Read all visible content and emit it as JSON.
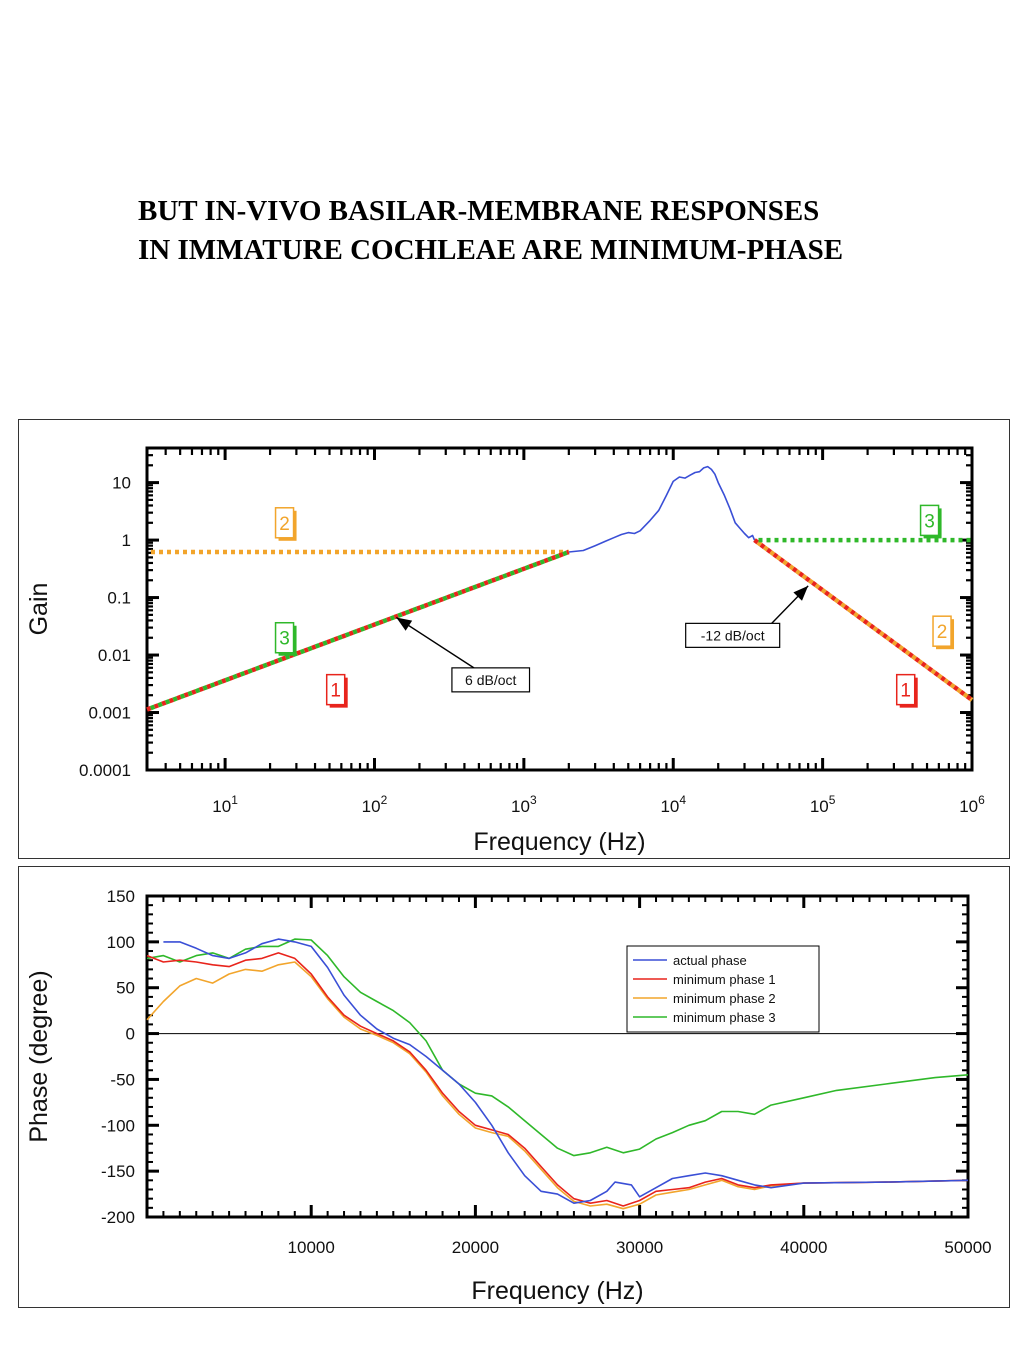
{
  "title": {
    "line1": "BUT IN-VIVO BASILAR-MEMBRANE RESPONSES",
    "line2": "IN IMMATURE COCHLEAE ARE MINIMUM-PHASE"
  },
  "chart_data": [
    {
      "type": "line",
      "xlabel": "Frequency (Hz)",
      "ylabel": "Gain",
      "xscale": "log",
      "yscale": "log",
      "xlim": [
        3,
        1000000
      ],
      "ylim": [
        0.0001,
        40
      ],
      "x_ticks": [
        {
          "value": 10,
          "base": "10",
          "exp": "1"
        },
        {
          "value": 100,
          "base": "10",
          "exp": "2"
        },
        {
          "value": 1000,
          "base": "10",
          "exp": "3"
        },
        {
          "value": 10000,
          "base": "10",
          "exp": "4"
        },
        {
          "value": 100000,
          "base": "10",
          "exp": "5"
        },
        {
          "value": 1000000,
          "base": "10",
          "exp": "6"
        }
      ],
      "y_ticks": [
        {
          "value": 10,
          "label": "10"
        },
        {
          "value": 1,
          "label": "1"
        },
        {
          "value": 0.1,
          "label": "0.1"
        },
        {
          "value": 0.01,
          "label": "0.01"
        },
        {
          "value": 0.001,
          "label": "0.001"
        },
        {
          "value": 0.0001,
          "label": "0.0001"
        }
      ],
      "series": [
        {
          "color": "#3a4fd6",
          "style": "solid",
          "x": [
            2000,
            2500,
            3000,
            3500,
            4000,
            4500,
            5000,
            5500,
            6000,
            7000,
            8000,
            9000,
            10000,
            11000,
            12000,
            13000,
            14000,
            15000,
            16000,
            17000,
            18000,
            19000,
            20000,
            22000,
            24000,
            26000,
            28000,
            30000,
            32000,
            34000,
            35000
          ],
          "y": [
            0.62,
            0.66,
            0.8,
            0.95,
            1.1,
            1.25,
            1.35,
            1.3,
            1.45,
            2.2,
            3.3,
            6,
            10.5,
            12.5,
            12,
            13.5,
            15,
            15.5,
            18,
            19,
            17,
            14,
            10,
            6,
            3.5,
            2,
            1.6,
            1.3,
            1.1,
            1.2,
            1.0
          ]
        },
        {
          "color": "#f2a52c",
          "style": "dotted",
          "x": [
            3,
            2000
          ],
          "y": [
            0.62,
            0.62
          ]
        },
        {
          "color": "#e8241c",
          "style": "dotted",
          "x": [
            3,
            2000
          ],
          "y": [
            0.00113,
            0.62
          ]
        },
        {
          "color": "#2fb82a",
          "style": "dotted",
          "x": [
            3,
            2000
          ],
          "y": [
            0.00113,
            0.62
          ]
        },
        {
          "color": "#f2a52c",
          "style": "dotted",
          "x": [
            35000,
            1000000
          ],
          "y": [
            1.0,
            0.00165
          ]
        },
        {
          "color": "#e8241c",
          "style": "dotted",
          "x": [
            35000,
            1000000
          ],
          "y": [
            1.0,
            0.00165
          ]
        },
        {
          "color": "#2fb82a",
          "style": "dotted",
          "x": [
            35000,
            1000000
          ],
          "y": [
            1.0,
            1.0
          ]
        }
      ],
      "markers": [
        {
          "label": "2",
          "color": "#f2a52c",
          "x": 25,
          "y": 2.0
        },
        {
          "label": "3",
          "color": "#2fb82a",
          "x": 25,
          "y": 0.02
        },
        {
          "label": "1",
          "color": "#e8241c",
          "x": 55,
          "y": 0.0025
        },
        {
          "label": "3",
          "color": "#2fb82a",
          "x": 520000,
          "y": 2.2
        },
        {
          "label": "2",
          "color": "#f2a52c",
          "x": 630000,
          "y": 0.026
        },
        {
          "label": "1",
          "color": "#e8241c",
          "x": 360000,
          "y": 0.0025
        }
      ],
      "annotations": [
        {
          "text": "6 dB/oct",
          "x": 600,
          "y": 0.0037,
          "arrow_to": [
            140,
            0.045
          ]
        },
        {
          "text": "-12 dB/oct",
          "x": 25000,
          "y": 0.022,
          "arrow_to": [
            80000,
            0.16
          ]
        }
      ]
    },
    {
      "type": "line",
      "xlabel": "Frequency (Hz)",
      "ylabel": "Phase (degree)",
      "xlim": [
        0,
        50000
      ],
      "ylim": [
        -200,
        150
      ],
      "x_ticks": [
        10000,
        20000,
        30000,
        40000,
        50000
      ],
      "y_ticks": [
        150,
        100,
        50,
        0,
        -50,
        -100,
        -150,
        -200
      ],
      "legend_position": "top-right",
      "series": [
        {
          "name": "actual phase",
          "color": "#3a4fd6",
          "x": [
            1000,
            2000,
            3000,
            4000,
            5000,
            6000,
            7000,
            8000,
            9000,
            10000,
            11000,
            12000,
            13000,
            14000,
            15000,
            16000,
            17000,
            18000,
            19000,
            20000,
            21000,
            22000,
            23000,
            24000,
            25000,
            26000,
            27000,
            28000,
            28500,
            29500,
            30000,
            31000,
            32000,
            33000,
            34000,
            35000,
            36000,
            37000,
            38000,
            40000,
            45000,
            50000
          ],
          "y": [
            100,
            100,
            93,
            85,
            82,
            88,
            98,
            103,
            100,
            95,
            72,
            42,
            20,
            5,
            -5,
            -12,
            -25,
            -40,
            -55,
            -75,
            -100,
            -130,
            -155,
            -172,
            -175,
            -185,
            -182,
            -172,
            -162,
            -165,
            -178,
            -168,
            -158,
            -155,
            -152,
            -155,
            -160,
            -165,
            -168,
            -163,
            -162,
            -160
          ]
        },
        {
          "name": "minimum phase 1",
          "color": "#e8241c",
          "x": [
            0,
            1000,
            2000,
            3000,
            4000,
            5000,
            6000,
            7000,
            8000,
            9000,
            10000,
            11000,
            12000,
            13000,
            14000,
            15000,
            16000,
            17000,
            18000,
            19000,
            20000,
            21000,
            22000,
            23000,
            24000,
            25000,
            26000,
            27000,
            28000,
            29000,
            30000,
            31000,
            32000,
            33000,
            34000,
            35000,
            36000,
            37000,
            38000,
            40000,
            45000,
            50000
          ],
          "y": [
            85,
            78,
            80,
            78,
            75,
            73,
            80,
            82,
            88,
            82,
            65,
            40,
            20,
            8,
            0,
            -8,
            -20,
            -40,
            -65,
            -85,
            -100,
            -105,
            -110,
            -125,
            -145,
            -165,
            -180,
            -185,
            -182,
            -188,
            -182,
            -172,
            -170,
            -168,
            -162,
            -158,
            -165,
            -168,
            -165,
            -163,
            -162,
            -160
          ]
        },
        {
          "name": "minimum phase 2",
          "color": "#f2a52c",
          "x": [
            0,
            1000,
            2000,
            3000,
            4000,
            5000,
            6000,
            7000,
            8000,
            9000,
            10000,
            11000,
            12000,
            13000,
            14000,
            15000,
            16000,
            17000,
            18000,
            19000,
            20000,
            21000,
            22000,
            23000,
            24000,
            25000,
            26000,
            27000,
            28000,
            29000,
            30000,
            31000,
            32000,
            33000,
            34000,
            35000,
            36000,
            37000,
            38000,
            40000,
            45000,
            50000
          ],
          "y": [
            15,
            35,
            52,
            60,
            55,
            65,
            70,
            68,
            75,
            78,
            62,
            38,
            18,
            5,
            -2,
            -10,
            -22,
            -42,
            -68,
            -88,
            -103,
            -108,
            -112,
            -128,
            -148,
            -168,
            -183,
            -188,
            -186,
            -191,
            -186,
            -176,
            -173,
            -170,
            -165,
            -160,
            -167,
            -170,
            -166,
            -163,
            -162,
            -160
          ]
        },
        {
          "name": "minimum phase 3",
          "color": "#2fb82a",
          "x": [
            0,
            1000,
            2000,
            3000,
            4000,
            5000,
            6000,
            7000,
            8000,
            9000,
            10000,
            11000,
            12000,
            13000,
            14000,
            15000,
            16000,
            17000,
            18000,
            19000,
            20000,
            21000,
            22000,
            23000,
            24000,
            25000,
            26000,
            27000,
            28000,
            29000,
            30000,
            31000,
            32000,
            33000,
            34000,
            35000,
            36000,
            37000,
            38000,
            40000,
            42000,
            45000,
            48000,
            50000
          ],
          "y": [
            82,
            85,
            78,
            85,
            88,
            82,
            92,
            95,
            95,
            103,
            102,
            85,
            62,
            45,
            35,
            25,
            12,
            -8,
            -40,
            -55,
            -65,
            -68,
            -80,
            -95,
            -110,
            -125,
            -133,
            -130,
            -124,
            -130,
            -126,
            -115,
            -108,
            -100,
            -95,
            -85,
            -85,
            -88,
            -78,
            -70,
            -62,
            -55,
            -48,
            -45
          ]
        }
      ]
    }
  ]
}
